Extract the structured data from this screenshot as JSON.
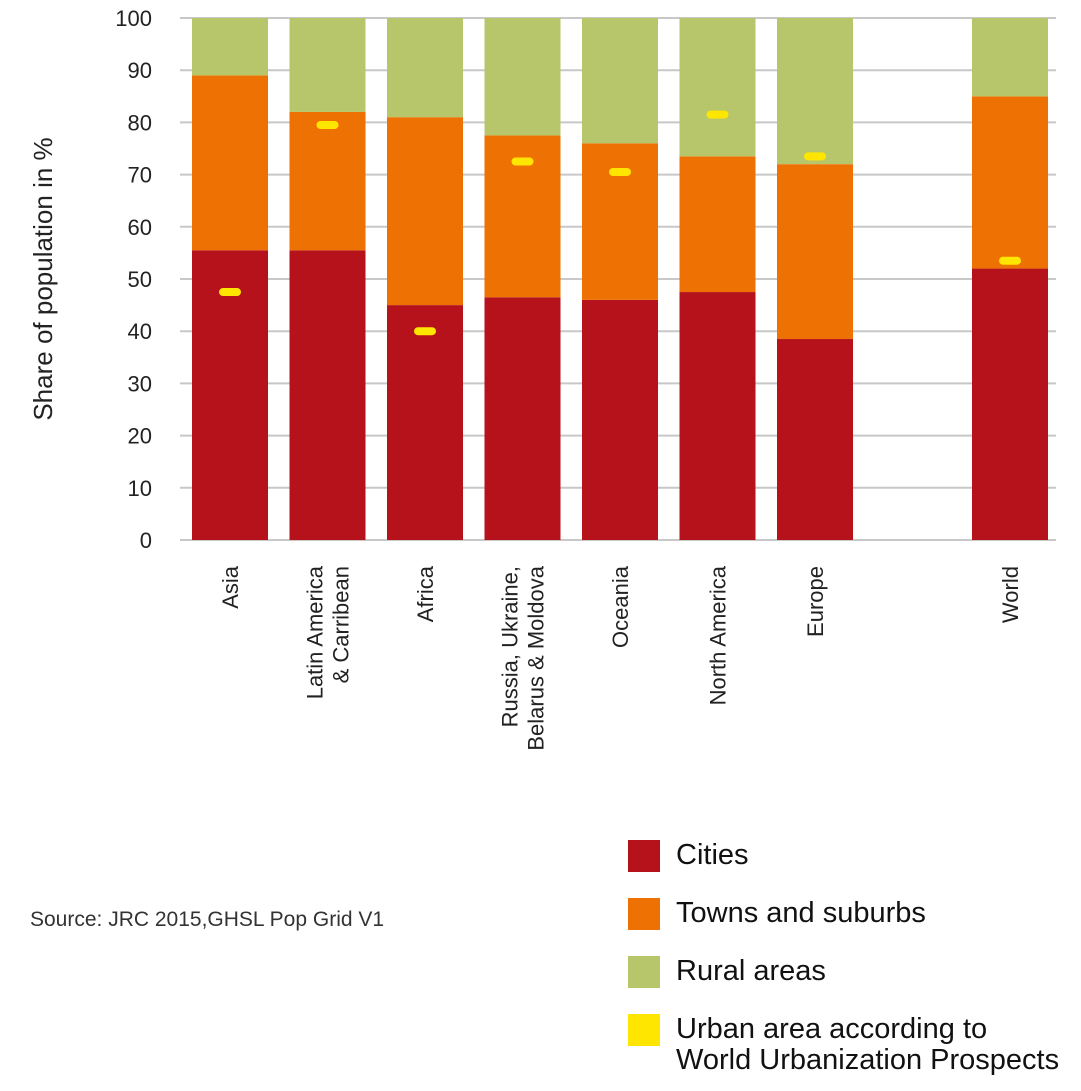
{
  "chart_data": {
    "type": "bar",
    "stacked": true,
    "ylabel": "Share of population in %",
    "ylim": [
      0,
      100
    ],
    "yticks": [
      0,
      10,
      20,
      30,
      40,
      50,
      60,
      70,
      80,
      90,
      100
    ],
    "grid": true,
    "categories": [
      [
        "Asia"
      ],
      [
        "Latin America",
        "& Carribean"
      ],
      [
        "Africa"
      ],
      [
        "Russia, Ukraine,",
        "Belarus & Moldova"
      ],
      [
        "Oceania"
      ],
      [
        "North America"
      ],
      [
        "Europe"
      ],
      [
        ""
      ],
      [
        "World"
      ]
    ],
    "series": [
      {
        "name": "Cities",
        "color": "#b5121b",
        "values": [
          55.5,
          55.5,
          45,
          46.5,
          46,
          47.5,
          38.5,
          null,
          52
        ]
      },
      {
        "name": "Towns and suburbs",
        "color": "#ee7203",
        "values": [
          33.5,
          26.5,
          36,
          31,
          30,
          26,
          33.5,
          null,
          33
        ]
      },
      {
        "name": "Rural areas",
        "color": "#b7c66a",
        "values": [
          11,
          18,
          19,
          22.5,
          24,
          26.5,
          28,
          null,
          15
        ]
      }
    ],
    "markers": {
      "name": "Urban area according to World Urbanization Prospects",
      "color": "#ffe600",
      "values": [
        47.5,
        79.5,
        40,
        72.5,
        70.5,
        81.5,
        73.5,
        null,
        53.5
      ]
    },
    "legend_position": "bottom-right"
  },
  "legend": [
    {
      "label": "Cities",
      "color": "#b5121b"
    },
    {
      "label": "Towns and suburbs",
      "color": "#ee7203"
    },
    {
      "label": "Rural areas",
      "color": "#b7c66a"
    },
    {
      "label": "Urban area according to\nWorld Urbanization Prospects",
      "color": "#ffe600"
    }
  ],
  "source": "Source: JRC 2015,GHSL Pop Grid V1"
}
